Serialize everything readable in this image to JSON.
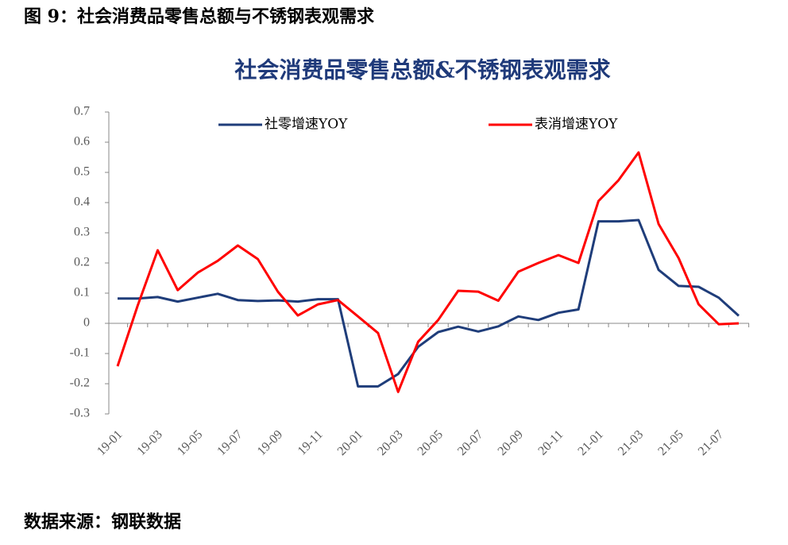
{
  "header": {
    "caption": "图 9：社会消费品零售总额与不锈钢表观需求"
  },
  "chart_data": {
    "type": "line",
    "title": "社会消费品零售总额&不锈钢表观需求",
    "categories": [
      "19-01",
      null,
      "19-03",
      null,
      "19-05",
      null,
      "19-07",
      null,
      "19-09",
      null,
      "19-11",
      null,
      "20-01",
      null,
      "20-03",
      null,
      "20-05",
      null,
      "20-07",
      null,
      "20-09",
      null,
      "20-11",
      null,
      "21-01",
      null,
      "21-03",
      null,
      "21-05",
      null,
      "21-07",
      null
    ],
    "series": [
      {
        "name": "社零增速YOY",
        "color": "#1f3d7a",
        "values": [
          0.082,
          0.082,
          0.087,
          0.072,
          0.085,
          0.098,
          0.077,
          0.074,
          0.076,
          0.072,
          0.08,
          0.08,
          -0.209,
          -0.209,
          -0.168,
          -0.078,
          -0.029,
          -0.011,
          -0.027,
          -0.01,
          0.023,
          0.011,
          0.035,
          0.046,
          0.338,
          0.338,
          0.342,
          0.177,
          0.124,
          0.121,
          0.085,
          0.025
        ]
      },
      {
        "name": "表消增速YOY",
        "color": "#ff0000",
        "values": [
          -0.142,
          0.058,
          0.242,
          0.11,
          0.168,
          0.207,
          0.258,
          0.213,
          0.105,
          0.026,
          0.063,
          0.077,
          0.023,
          -0.032,
          -0.227,
          -0.061,
          0.011,
          0.108,
          0.105,
          0.075,
          0.171,
          0.2,
          0.226,
          0.2,
          0.405,
          0.474,
          0.566,
          0.329,
          0.216,
          0.063,
          -0.003,
          0.0
        ]
      }
    ],
    "ylim": [
      -0.3,
      0.7
    ],
    "yticks": [
      0.7,
      0.6,
      0.5,
      0.4,
      0.3,
      0.2,
      0.1,
      0,
      -0.1,
      -0.2,
      -0.3
    ],
    "legend": "top"
  },
  "footer": {
    "source": "数据来源：钢联数据"
  }
}
